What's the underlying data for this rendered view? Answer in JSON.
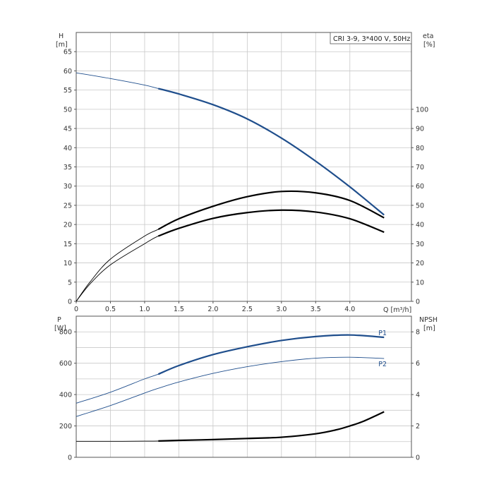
{
  "colors": {
    "blue": "#1f4e8c",
    "black": "#000000",
    "grid": "#c8c8c8"
  },
  "chart_data": [
    {
      "type": "line",
      "title": "CRI 3-9, 3*400 V, 50Hz",
      "ylabel_left": [
        "H",
        "[m]"
      ],
      "ylabel_right": [
        "eta",
        "[%]"
      ],
      "xlabel": "Q [m³/h]",
      "xlim": [
        0,
        4.9
      ],
      "ylim_left": [
        0,
        70
      ],
      "ylim_right": [
        0,
        140
      ],
      "x_ticks": [
        "0",
        "0.5",
        "1.0",
        "1.5",
        "2.0",
        "2.5",
        "3.0",
        "3.5",
        "4.0"
      ],
      "y_ticks_left": [
        "0",
        "5",
        "10",
        "15",
        "20",
        "25",
        "30",
        "35",
        "40",
        "45",
        "50",
        "55",
        "60",
        "65"
      ],
      "y_ticks_right": [
        "0",
        "10",
        "20",
        "30",
        "40",
        "50",
        "60",
        "70",
        "80",
        "90",
        "100"
      ],
      "grid": true,
      "series": [
        {
          "axis": "left",
          "color": "blue",
          "operating_range": [
            1.2,
            4.5
          ],
          "x": [
            0,
            0.5,
            1.0,
            1.2,
            1.5,
            2.0,
            2.5,
            3.0,
            3.5,
            4.0,
            4.5
          ],
          "y": [
            59.5,
            58.0,
            56.3,
            55.4,
            54.0,
            51.2,
            47.5,
            42.5,
            36.5,
            29.8,
            22.5
          ]
        },
        {
          "axis": "right",
          "color": "black",
          "operating_range": [
            1.2,
            4.5
          ],
          "x": [
            0,
            0.2,
            0.5,
            1.0,
            1.2,
            1.5,
            2.0,
            2.5,
            3.0,
            3.5,
            4.0,
            4.5
          ],
          "y": [
            0,
            10,
            22,
            34,
            37.5,
            43,
            49.5,
            54.5,
            57.2,
            56.5,
            52.5,
            43.5
          ]
        },
        {
          "axis": "right",
          "color": "black",
          "operating_range": [
            1.2,
            4.5
          ],
          "x": [
            0,
            0.2,
            0.5,
            1.0,
            1.2,
            1.5,
            2.0,
            2.5,
            3.0,
            3.5,
            4.0,
            4.5
          ],
          "y": [
            0,
            9,
            19,
            30,
            34,
            38,
            43.2,
            46.2,
            47.5,
            46.5,
            43,
            36
          ]
        }
      ]
    },
    {
      "type": "line",
      "ylabel_left": [
        "P",
        "[W]"
      ],
      "ylabel_right": [
        "NPSH",
        "[m]"
      ],
      "xlim": [
        0,
        4.9
      ],
      "ylim_left": [
        0,
        900
      ],
      "ylim_right": [
        0,
        9
      ],
      "y_ticks_left": [
        "0",
        "200",
        "400",
        "600",
        "800"
      ],
      "y_ticks_right": [
        "0",
        "2",
        "4",
        "6",
        "8"
      ],
      "grid": true,
      "series": [
        {
          "name": "P1",
          "axis": "left",
          "color": "blue",
          "operating_range": [
            1.2,
            4.5
          ],
          "x": [
            0,
            0.5,
            1.0,
            1.2,
            1.5,
            2.0,
            2.5,
            3.0,
            3.5,
            4.0,
            4.5
          ],
          "y": [
            345,
            415,
            500,
            530,
            585,
            655,
            705,
            745,
            770,
            780,
            765
          ]
        },
        {
          "name": "P2",
          "axis": "left",
          "color": "blue",
          "operating_range": [],
          "x": [
            0,
            0.5,
            1.0,
            1.2,
            1.5,
            2.0,
            2.5,
            3.0,
            3.5,
            4.0,
            4.5
          ],
          "y": [
            260,
            330,
            410,
            440,
            480,
            535,
            578,
            610,
            632,
            638,
            630
          ]
        },
        {
          "axis": "right",
          "color": "black",
          "operating_range": [
            1.2,
            4.5
          ],
          "x": [
            0,
            0.5,
            1.0,
            1.2,
            1.5,
            2.0,
            2.5,
            3.0,
            3.5,
            3.8,
            4.0,
            4.2,
            4.5
          ],
          "y": [
            1.02,
            1.02,
            1.03,
            1.04,
            1.08,
            1.13,
            1.2,
            1.28,
            1.5,
            1.75,
            2.0,
            2.3,
            2.9
          ]
        }
      ]
    }
  ]
}
